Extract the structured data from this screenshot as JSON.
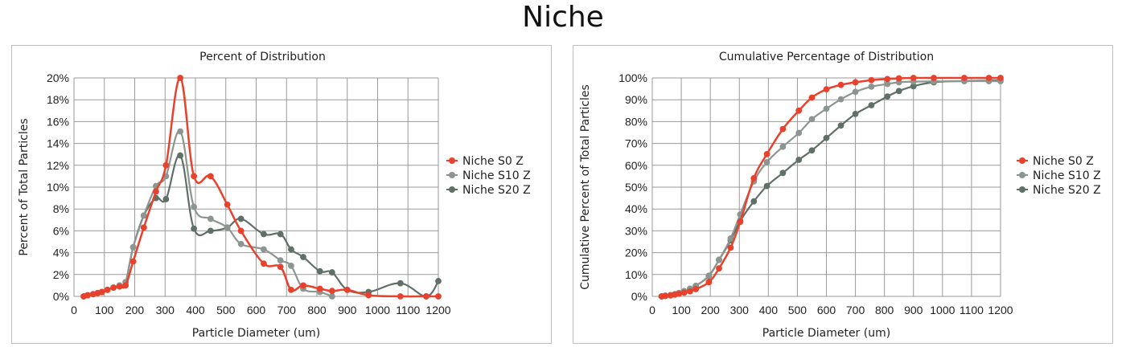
{
  "page": {
    "title": "Niche"
  },
  "series_colors": {
    "Niche S0 Z": "#e8412c",
    "Niche S10 Z": "#8c9590",
    "Niche S20 Z": "#5f7066"
  },
  "chart_data": [
    {
      "type": "line",
      "title": "Percent of Distribution",
      "xlabel": "Particle Diameter (um)",
      "ylabel": "Percent of Total Particles",
      "xlim": [
        0,
        1200
      ],
      "ylim": [
        0,
        20
      ],
      "x_ticks": [
        0,
        100,
        200,
        300,
        400,
        500,
        600,
        700,
        800,
        900,
        1000,
        1100,
        1200
      ],
      "x_tick_labels": [
        "0",
        "100",
        "200",
        "300",
        "400",
        "500",
        "600",
        "700",
        "800",
        "900",
        "1000",
        "1100",
        "1200"
      ],
      "y_ticks": [
        0,
        2,
        4,
        6,
        8,
        10,
        12,
        14,
        16,
        18,
        20
      ],
      "y_tick_labels": [
        "0%",
        "2%",
        "4%",
        "6%",
        "8%",
        "10%",
        "12%",
        "14%",
        "16%",
        "18%",
        "20%"
      ],
      "grid": true,
      "legend_position": "right",
      "series": [
        {
          "name": "Niche S0 Z",
          "x": [
            32,
            45,
            63,
            78,
            92,
            110,
            130,
            150,
            170,
            195,
            230,
            270,
            303,
            350,
            395,
            450,
            505,
            550,
            625,
            680,
            715,
            755,
            810,
            850,
            900,
            970,
            1075,
            1160,
            1200
          ],
          "y": [
            0.0,
            0.1,
            0.2,
            0.3,
            0.4,
            0.6,
            0.8,
            0.9,
            1.0,
            3.2,
            6.3,
            9.6,
            12.0,
            20.0,
            11.0,
            11.0,
            8.4,
            6.0,
            3.0,
            2.7,
            0.6,
            1.0,
            0.7,
            0.5,
            0.6,
            0.1,
            0.0,
            0.0,
            0.0
          ]
        },
        {
          "name": "Niche S10 Z",
          "x": [
            32,
            45,
            63,
            78,
            92,
            110,
            130,
            150,
            170,
            195,
            230,
            270,
            303,
            350,
            395,
            450,
            505,
            550,
            625,
            680,
            715,
            755,
            810,
            850
          ],
          "y": [
            0.0,
            0.1,
            0.2,
            0.3,
            0.4,
            0.6,
            0.8,
            1.0,
            1.3,
            4.5,
            7.4,
            10.1,
            11.0,
            15.1,
            8.2,
            7.1,
            6.3,
            4.8,
            4.3,
            3.3,
            2.8,
            0.7,
            0.4,
            0.0
          ]
        },
        {
          "name": "Niche S20 Z",
          "x": [
            32,
            45,
            63,
            78,
            92,
            110,
            130,
            150,
            170,
            195,
            230,
            270,
            303,
            350,
            395,
            450,
            505,
            550,
            625,
            680,
            715,
            755,
            810,
            850,
            900,
            970,
            1075,
            1160,
            1200
          ],
          "y": [
            0.0,
            0.1,
            0.2,
            0.3,
            0.4,
            0.6,
            0.8,
            1.0,
            1.3,
            4.5,
            7.4,
            9.0,
            8.9,
            12.9,
            6.2,
            6.0,
            6.3,
            7.1,
            5.7,
            5.7,
            4.3,
            3.6,
            2.3,
            2.2,
            0.6,
            0.4,
            1.2,
            0.0,
            1.4
          ]
        }
      ]
    },
    {
      "type": "line",
      "title": "Cumulative Percentage of Distribution",
      "xlabel": "Particle Diameter (um)",
      "ylabel": "Cumulative Percent of Total Particles",
      "xlim": [
        0,
        1200
      ],
      "ylim": [
        0,
        100
      ],
      "x_ticks": [
        0,
        100,
        200,
        300,
        400,
        500,
        600,
        700,
        800,
        900,
        1000,
        1100,
        1200
      ],
      "x_tick_labels": [
        "0",
        "100",
        "200",
        "300",
        "400",
        "500",
        "600",
        "700",
        "800",
        "900",
        "1000",
        "1100",
        "1200"
      ],
      "y_ticks": [
        0,
        10,
        20,
        30,
        40,
        50,
        60,
        70,
        80,
        90,
        100
      ],
      "y_tick_labels": [
        "0%",
        "10%",
        "20%",
        "30%",
        "40%",
        "50%",
        "60%",
        "70%",
        "80%",
        "90%",
        "100%"
      ],
      "grid": true,
      "legend_position": "right",
      "series": [
        {
          "name": "Niche S0 Z",
          "x": [
            32,
            45,
            63,
            78,
            92,
            110,
            130,
            150,
            195,
            230,
            270,
            303,
            350,
            395,
            450,
            505,
            550,
            600,
            650,
            700,
            755,
            810,
            850,
            900,
            970,
            1075,
            1160,
            1200
          ],
          "y": [
            0,
            0.2,
            0.4,
            0.8,
            1.2,
            1.7,
            2.3,
            3.3,
            6.5,
            12.8,
            22.3,
            34.1,
            54.1,
            65.1,
            76.6,
            85.0,
            91.0,
            94.8,
            96.8,
            98.0,
            99.0,
            99.5,
            99.8,
            100,
            100,
            100,
            100,
            100
          ]
        },
        {
          "name": "Niche S10 Z",
          "x": [
            32,
            45,
            63,
            78,
            92,
            110,
            130,
            150,
            195,
            230,
            270,
            303,
            350,
            395,
            450,
            505,
            550,
            600,
            650,
            700,
            755,
            810,
            850,
            900,
            970,
            1075,
            1160,
            1200
          ],
          "y": [
            0,
            0.3,
            0.6,
            1.0,
            1.5,
            2.4,
            3.5,
            4.8,
            9.5,
            16.8,
            26.5,
            37.5,
            52.6,
            61.4,
            68.5,
            74.8,
            81.1,
            85.9,
            90.2,
            93.6,
            96.0,
            97.2,
            98.0,
            98.3,
            98.4,
            98.5,
            98.5,
            98.5
          ]
        },
        {
          "name": "Niche S20 Z",
          "x": [
            32,
            45,
            63,
            78,
            92,
            110,
            130,
            150,
            195,
            230,
            270,
            303,
            350,
            395,
            450,
            505,
            550,
            600,
            650,
            700,
            755,
            810,
            850,
            900,
            970,
            1075,
            1160,
            1200
          ],
          "y": [
            0,
            0.3,
            0.6,
            1.0,
            1.5,
            2.4,
            3.5,
            4.8,
            9.3,
            16.7,
            25.6,
            34.5,
            43.5,
            50.5,
            56.5,
            62.5,
            66.8,
            72.5,
            78.2,
            83.5,
            87.5,
            91.5,
            94.0,
            96.2,
            98.0,
            98.6,
            98.8,
            99.0
          ]
        }
      ]
    }
  ]
}
